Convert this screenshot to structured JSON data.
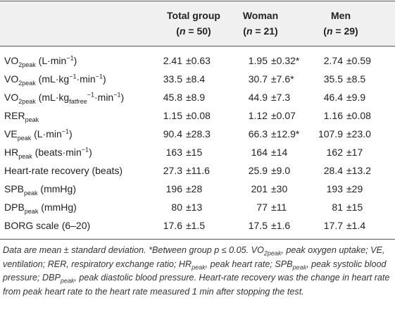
{
  "header": {
    "columns": [
      {
        "name": "Total group",
        "n": [
          "(",
          {
            "i": "n"
          },
          " = 50)"
        ]
      },
      {
        "name": "Woman",
        "n": [
          "(",
          {
            "i": "n"
          },
          " = 21)"
        ]
      },
      {
        "name": "Men",
        "n": [
          "(",
          {
            "i": "n"
          },
          " = 29)"
        ]
      }
    ]
  },
  "table": {
    "rows": [
      {
        "label": [
          "VO",
          {
            "sub": "2peak"
          },
          " (L·min",
          {
            "sup": "−1"
          },
          ")"
        ],
        "values": [
          {
            "mean": "2.41",
            "sd": "±0.63"
          },
          {
            "mean": "1.95",
            "sd": "±0.32*"
          },
          {
            "mean": "2.74",
            "sd": "±0.59"
          }
        ]
      },
      {
        "label": [
          "VO",
          {
            "sub": "2peak"
          },
          " (mL·kg",
          {
            "sup": "−1"
          },
          "·min",
          {
            "sup": "−1"
          },
          ")"
        ],
        "values": [
          {
            "mean": "33.5",
            "sd": "±8.4"
          },
          {
            "mean": "30.7",
            "sd": "±7.6*"
          },
          {
            "mean": "35.5",
            "sd": "±8.5"
          }
        ]
      },
      {
        "label": [
          "VO",
          {
            "sub": "2peak"
          },
          " (mL·kg",
          {
            "sub": "fatfree"
          },
          {
            "sup": "−1"
          },
          "·min",
          {
            "sup": "−1"
          },
          ")"
        ],
        "values": [
          {
            "mean": "45.8",
            "sd": "±8.9"
          },
          {
            "mean": "44.9",
            "sd": "±7.3"
          },
          {
            "mean": "46.4",
            "sd": "±9.9"
          }
        ]
      },
      {
        "label": [
          "RER",
          {
            "sub": "peak"
          }
        ],
        "values": [
          {
            "mean": "1.15",
            "sd": "±0.08"
          },
          {
            "mean": "1.12",
            "sd": "±0.07"
          },
          {
            "mean": "1.16",
            "sd": "±0.08"
          }
        ]
      },
      {
        "label": [
          "VE",
          {
            "sub": "peak"
          },
          " (L·min",
          {
            "sup": "−1"
          },
          ")"
        ],
        "values": [
          {
            "mean": "90.4",
            "sd": "±28.3"
          },
          {
            "mean": "66.3",
            "sd": "±12.9*"
          },
          {
            "mean": "107.9",
            "sd": "±23.0"
          }
        ]
      },
      {
        "label": [
          "HR",
          {
            "sub": "peak"
          },
          " (beats·min",
          {
            "sup": "−1"
          },
          ")"
        ],
        "values": [
          {
            "mean": "163",
            "sd": "±15"
          },
          {
            "mean": "164",
            "sd": "±14"
          },
          {
            "mean": "162",
            "sd": "±17"
          }
        ]
      },
      {
        "label": [
          "Heart-rate recovery (beats)"
        ],
        "values": [
          {
            "mean": "27.3",
            "sd": "±11.6"
          },
          {
            "mean": "25.9",
            "sd": "±9.0"
          },
          {
            "mean": "28.4",
            "sd": "±13.2"
          }
        ]
      },
      {
        "label": [
          "SPB",
          {
            "sub": "peak"
          },
          " (mmHg)"
        ],
        "values": [
          {
            "mean": "196",
            "sd": "±28"
          },
          {
            "mean": "201",
            "sd": "±30"
          },
          {
            "mean": "193",
            "sd": "±29"
          }
        ]
      },
      {
        "label": [
          "DPB",
          {
            "sub": "peak"
          },
          " (mmHg)"
        ],
        "values": [
          {
            "mean": "80",
            "sd": "±13"
          },
          {
            "mean": "77",
            "sd": "±11"
          },
          {
            "mean": "81",
            "sd": "±15"
          }
        ]
      },
      {
        "label": [
          "BORG scale (6–20)"
        ],
        "values": [
          {
            "mean": "17.6",
            "sd": "±1.5"
          },
          {
            "mean": "17.5",
            "sd": "±1.6"
          },
          {
            "mean": "17.7",
            "sd": "±1.4"
          }
        ]
      }
    ]
  },
  "footnote": [
    "Data are mean ± standard deviation. *Between group p ≤ 0.05. VO",
    {
      "sub": "2peak"
    },
    ", peak oxygen uptake; VE, ventilation; RER, respiratory exchange ratio; HR",
    {
      "sub": "peak"
    },
    ", peak heart rate; SPB",
    {
      "sub": "peak"
    },
    ", peak systolic blood pressure; DBP",
    {
      "sub": "peak"
    },
    ", peak diastolic blood pressure. Heart-rate recovery was the change in heart rate from peak heart rate to the heart rate measured 1 min after stopping the test."
  ]
}
